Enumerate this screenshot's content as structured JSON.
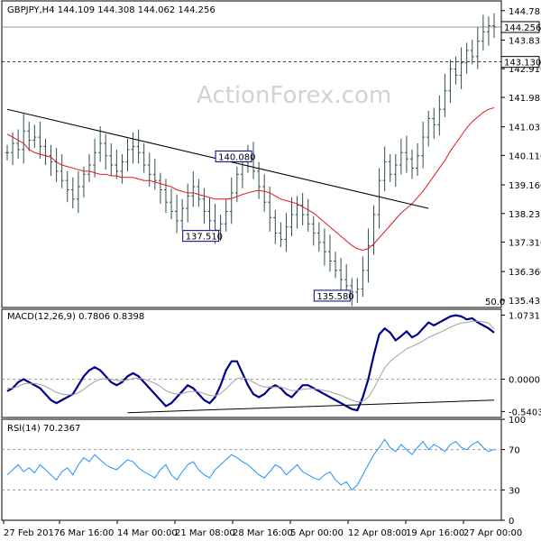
{
  "watermark": "ActionForex.com",
  "chart_data": [
    {
      "panel": "price",
      "type": "candlestick",
      "title": "GBPJPY,H4  144.109 144.308 144.062 144.256",
      "ylim": [
        135.2,
        145.1
      ],
      "y_ticks": [
        {
          "value": 144.785,
          "label": "144.785"
        },
        {
          "value": 143.835,
          "label": "143.835"
        },
        {
          "value": 142.91,
          "label": "142.910"
        },
        {
          "value": 141.985,
          "label": "141.985"
        },
        {
          "value": 141.035,
          "label": "141.035"
        },
        {
          "value": 140.11,
          "label": "140.110"
        },
        {
          "value": 139.16,
          "label": "139.160"
        },
        {
          "value": 138.235,
          "label": "138.235"
        },
        {
          "value": 137.31,
          "label": "137.310"
        },
        {
          "value": 136.36,
          "label": "136.360"
        },
        {
          "value": 135.435,
          "label": "135.435"
        }
      ],
      "markers": [
        {
          "value": 144.256,
          "label": "144.256",
          "style": "line"
        },
        {
          "value": 143.13,
          "label": "143.130",
          "style": "dashed"
        }
      ],
      "annotations": [
        {
          "label": "140.080",
          "value": 140.08,
          "x_label": "28 Mar"
        },
        {
          "label": "137.510",
          "value": 137.51,
          "x_label": "21 Mar"
        },
        {
          "label": "135.580",
          "value": 135.58,
          "x_label": "12 Apr"
        }
      ],
      "corner_label": "50.0",
      "close_series": [
        140.2,
        140.5,
        140.3,
        140.9,
        140.6,
        140.7,
        140.4,
        140.1,
        139.9,
        139.6,
        139.3,
        139.0,
        138.7,
        139.1,
        139.5,
        139.8,
        140.2,
        140.5,
        140.1,
        139.8,
        139.6,
        139.9,
        140.3,
        140.4,
        140.2,
        139.8,
        139.5,
        139.3,
        139.0,
        138.6,
        138.3,
        138.0,
        138.4,
        138.8,
        139.1,
        138.7,
        138.3,
        138.0,
        137.7,
        137.9,
        138.3,
        138.9,
        139.5,
        139.9,
        140.0,
        139.6,
        139.1,
        138.6,
        138.1,
        137.6,
        137.4,
        137.8,
        138.2,
        138.5,
        138.2,
        137.9,
        137.6,
        137.3,
        137.0,
        136.7,
        136.4,
        136.1,
        135.9,
        135.7,
        135.8,
        136.4,
        137.2,
        138.2,
        139.3,
        139.9,
        139.5,
        139.8,
        140.2,
        140.0,
        139.7,
        140.1,
        140.7,
        141.3,
        141.1,
        141.6,
        142.2,
        142.9,
        142.7,
        143.1,
        143.5,
        143.3,
        143.8,
        144.1,
        144.3,
        144.256
      ],
      "series": [
        {
          "name": "",
          "kind": "sma",
          "color": "#e1171e",
          "values": [
            140.8,
            140.7,
            140.6,
            140.5,
            140.3,
            140.2,
            140.15,
            140.1,
            140.05,
            139.9,
            139.8,
            139.75,
            139.7,
            139.65,
            139.6,
            139.6,
            139.55,
            139.5,
            139.5,
            139.45,
            139.45,
            139.4,
            139.4,
            139.4,
            139.35,
            139.3,
            139.3,
            139.25,
            139.2,
            139.15,
            139.1,
            139.0,
            138.95,
            138.9,
            138.9,
            138.85,
            138.8,
            138.75,
            138.7,
            138.7,
            138.7,
            138.72,
            138.78,
            138.85,
            138.9,
            138.95,
            138.98,
            138.95,
            138.9,
            138.8,
            138.7,
            138.65,
            138.6,
            138.55,
            138.45,
            138.35,
            138.25,
            138.1,
            137.95,
            137.8,
            137.65,
            137.5,
            137.35,
            137.2,
            137.1,
            137.05,
            137.1,
            137.25,
            137.45,
            137.65,
            137.85,
            138.05,
            138.25,
            138.4,
            138.55,
            138.75,
            138.95,
            139.2,
            139.45,
            139.7,
            139.95,
            140.25,
            140.5,
            140.75,
            141.0,
            141.2,
            141.35,
            141.5,
            141.6,
            141.65
          ]
        },
        {
          "name": "",
          "kind": "trendline",
          "color": "#000000",
          "points": [
            [
              0,
              141.6
            ],
            [
              77,
              138.4
            ]
          ]
        }
      ]
    },
    {
      "panel": "macd",
      "type": "line",
      "title": "MACD(12,26,9) 0.7806 0.8398",
      "ylim": [
        -0.64,
        1.17
      ],
      "y_ticks": [
        {
          "value": 1.0731,
          "label": "1.0731"
        },
        {
          "value": 0.0,
          "label": "0.0000"
        },
        {
          "value": -0.5403,
          "label": "-0.5403"
        }
      ],
      "series": [
        {
          "name": "",
          "kind": "macd",
          "color": "#00008b",
          "values": [
            -0.2,
            -0.15,
            -0.05,
            0.0,
            -0.05,
            -0.1,
            -0.15,
            -0.25,
            -0.35,
            -0.4,
            -0.35,
            -0.3,
            -0.25,
            -0.1,
            0.05,
            0.15,
            0.2,
            0.15,
            0.05,
            -0.05,
            -0.1,
            -0.05,
            0.05,
            0.1,
            0.05,
            -0.05,
            -0.15,
            -0.25,
            -0.35,
            -0.45,
            -0.4,
            -0.3,
            -0.2,
            -0.1,
            -0.15,
            -0.25,
            -0.35,
            -0.4,
            -0.3,
            -0.1,
            0.15,
            0.3,
            0.3,
            0.1,
            -0.1,
            -0.25,
            -0.3,
            -0.25,
            -0.15,
            -0.1,
            -0.15,
            -0.25,
            -0.3,
            -0.2,
            -0.1,
            -0.1,
            -0.15,
            -0.2,
            -0.25,
            -0.3,
            -0.35,
            -0.4,
            -0.45,
            -0.5,
            -0.52,
            -0.3,
            0.0,
            0.4,
            0.75,
            0.85,
            0.78,
            0.65,
            0.72,
            0.8,
            0.7,
            0.75,
            0.85,
            0.95,
            0.9,
            0.95,
            1.0,
            1.05,
            1.07,
            1.05,
            1.0,
            1.02,
            0.95,
            0.9,
            0.85,
            0.7806
          ]
        },
        {
          "name": "",
          "kind": "signal",
          "color": "#a0a0a0",
          "values": [
            -0.15,
            -0.15,
            -0.12,
            -0.08,
            -0.07,
            -0.07,
            -0.09,
            -0.12,
            -0.17,
            -0.22,
            -0.25,
            -0.26,
            -0.26,
            -0.23,
            -0.17,
            -0.1,
            -0.04,
            0.0,
            0.01,
            0.0,
            -0.02,
            -0.03,
            -0.01,
            0.01,
            0.02,
            0.0,
            -0.03,
            -0.07,
            -0.12,
            -0.19,
            -0.23,
            -0.25,
            -0.24,
            -0.21,
            -0.2,
            -0.21,
            -0.24,
            -0.27,
            -0.28,
            -0.24,
            -0.16,
            -0.07,
            0.01,
            0.03,
            0.0,
            -0.05,
            -0.1,
            -0.13,
            -0.13,
            -0.13,
            -0.13,
            -0.16,
            -0.19,
            -0.19,
            -0.17,
            -0.16,
            -0.16,
            -0.17,
            -0.19,
            -0.21,
            -0.24,
            -0.27,
            -0.31,
            -0.35,
            -0.38,
            -0.37,
            -0.3,
            -0.16,
            0.02,
            0.19,
            0.3,
            0.37,
            0.44,
            0.51,
            0.55,
            0.59,
            0.64,
            0.7,
            0.74,
            0.78,
            0.82,
            0.87,
            0.91,
            0.94,
            0.95,
            0.97,
            0.97,
            0.96,
            0.94,
            0.8398
          ]
        },
        {
          "name": "",
          "kind": "trendline",
          "color": "#000000",
          "points": [
            [
              22,
              -0.56
            ],
            [
              89,
              -0.35
            ]
          ]
        }
      ]
    },
    {
      "panel": "rsi",
      "type": "line",
      "title": "RSI(14) 70.2367",
      "ylim": [
        0,
        100
      ],
      "y_ticks": [
        {
          "value": 100,
          "label": "100"
        },
        {
          "value": 70,
          "label": "70"
        },
        {
          "value": 30,
          "label": "30"
        },
        {
          "value": 0,
          "label": "0"
        }
      ],
      "series": [
        {
          "name": "",
          "kind": "rsi",
          "color": "#1e90ff",
          "values": [
            45,
            50,
            55,
            48,
            52,
            47,
            55,
            50,
            45,
            40,
            48,
            52,
            45,
            55,
            62,
            58,
            65,
            60,
            55,
            52,
            50,
            55,
            60,
            58,
            52,
            48,
            45,
            42,
            50,
            55,
            45,
            40,
            48,
            55,
            58,
            50,
            45,
            42,
            50,
            55,
            60,
            65,
            62,
            58,
            55,
            50,
            45,
            42,
            48,
            55,
            52,
            45,
            50,
            55,
            48,
            45,
            42,
            40,
            45,
            48,
            40,
            35,
            38,
            30,
            35,
            45,
            55,
            65,
            72,
            80,
            72,
            68,
            75,
            70,
            65,
            72,
            78,
            70,
            75,
            72,
            68,
            75,
            78,
            72,
            70,
            75,
            78,
            72,
            68,
            70.2367
          ]
        }
      ]
    }
  ],
  "x_axis": {
    "labels": [
      "27 Feb 2017",
      "6 Mar 16:00",
      "14 Mar 00:00",
      "21 Mar 08:00",
      "28 Mar 16:00",
      "5 Apr 00:00",
      "12 Apr 08:00",
      "19 Apr 16:00",
      "27 Apr 00:00"
    ]
  }
}
